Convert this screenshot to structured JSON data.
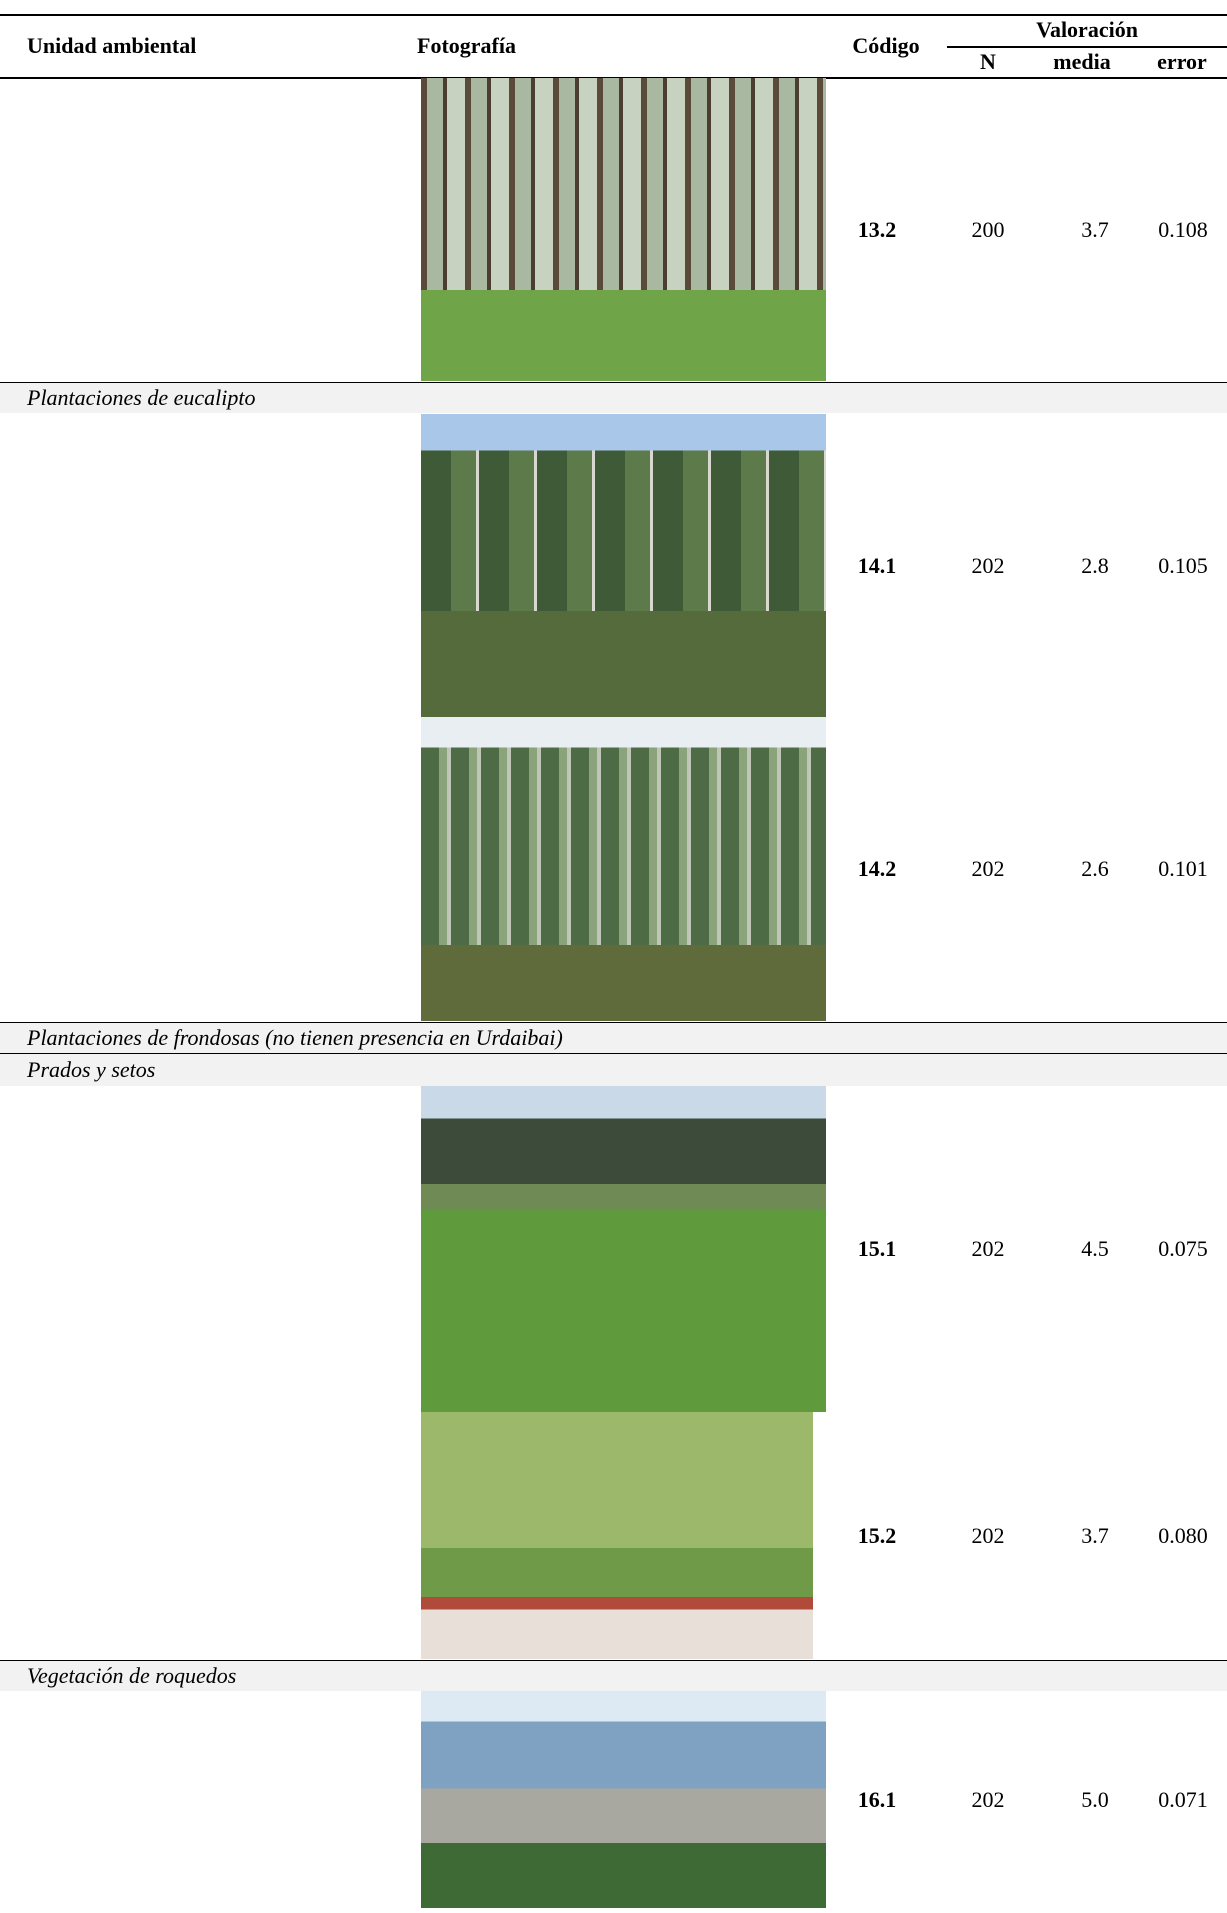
{
  "header": {
    "unit": "Unidad ambiental",
    "photo": "Fotografía",
    "code": "Código",
    "rating": "Valoración",
    "n": "N",
    "mean": "media",
    "error": "error"
  },
  "rows": [
    {
      "code": "13.2",
      "n": "200",
      "mean": "3.7",
      "error": "0.108"
    },
    {
      "group": "Plantaciones de eucalipto"
    },
    {
      "code": "14.1",
      "n": "202",
      "mean": "2.8",
      "error": "0.105"
    },
    {
      "code": "14.2",
      "n": "202",
      "mean": "2.6",
      "error": "0.101"
    },
    {
      "group": "Plantaciones de frondosas (no tienen presencia en Urdaibai)"
    },
    {
      "group": "Prados y setos"
    },
    {
      "code": "15.1",
      "n": "202",
      "mean": "4.5",
      "error": "0.075"
    },
    {
      "code": "15.2",
      "n": "202",
      "mean": "3.7",
      "error": "0.080"
    },
    {
      "group": "Vegetación de roquedos"
    },
    {
      "code": "16.1",
      "n": "202",
      "mean": "5.0",
      "error": "0.071"
    }
  ]
}
